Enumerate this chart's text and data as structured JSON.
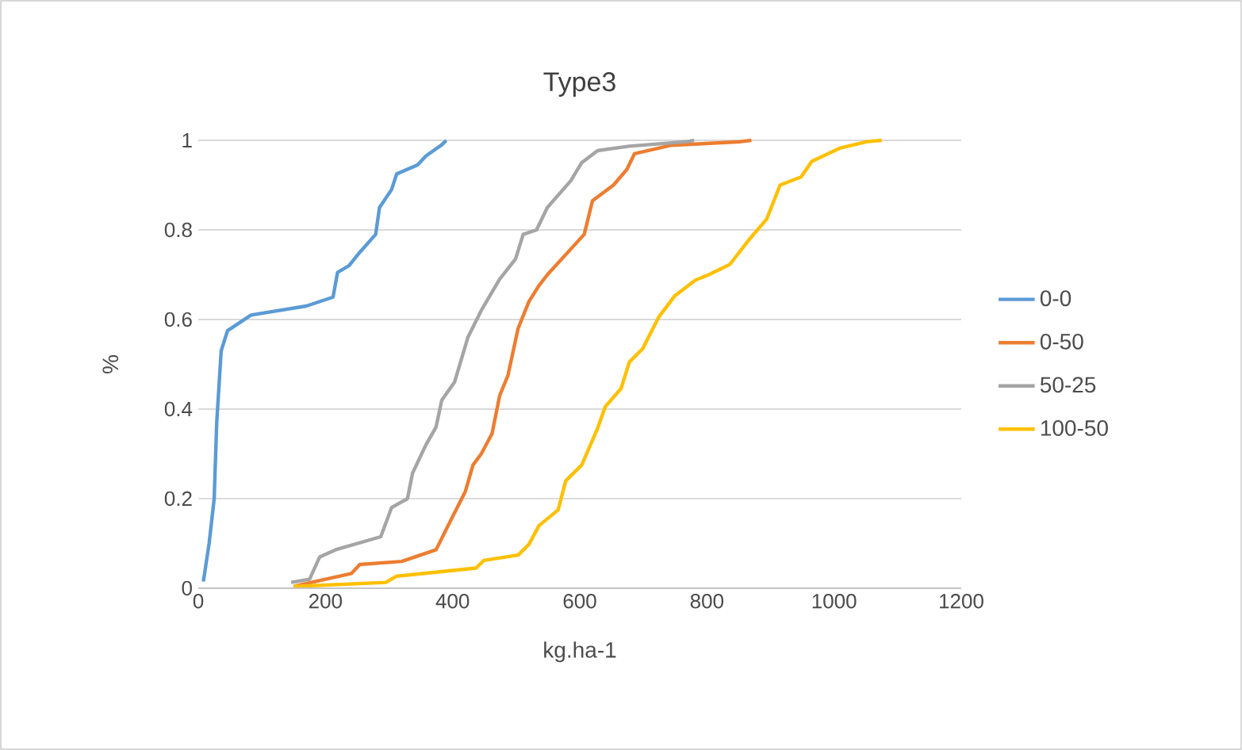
{
  "chart_data": {
    "type": "line",
    "title": "Type3",
    "xlabel": "kg.ha-1",
    "ylabel": "%",
    "xlim": [
      0,
      1200
    ],
    "xticks": [
      0,
      200,
      400,
      600,
      800,
      1000,
      1200
    ],
    "ylim": [
      0,
      1
    ],
    "yticks": [
      0,
      0.2,
      0.4,
      0.6,
      0.8,
      1
    ],
    "grid": "y",
    "legend": "right",
    "series": [
      {
        "name": "0-0",
        "color": "#5b9bd5",
        "x": [
          8,
          17,
          25,
          29,
          36,
          46,
          83,
          170,
          212,
          219,
          237,
          254,
          279,
          285,
          304,
          312,
          345,
          358,
          383,
          390
        ],
        "values": [
          0.015,
          0.1,
          0.2,
          0.37,
          0.53,
          0.575,
          0.61,
          0.63,
          0.65,
          0.705,
          0.72,
          0.75,
          0.79,
          0.85,
          0.89,
          0.925,
          0.945,
          0.965,
          0.99,
          1
        ]
      },
      {
        "name": "0-50",
        "color": "#ed7d31",
        "x": [
          150,
          200,
          241,
          254,
          320,
          374,
          399,
          420,
          432,
          445,
          462,
          474,
          487,
          503,
          520,
          536,
          549,
          607,
          620,
          653,
          674,
          686,
          744,
          853,
          870
        ],
        "values": [
          0.004,
          0.02,
          0.033,
          0.053,
          0.06,
          0.086,
          0.157,
          0.216,
          0.275,
          0.3,
          0.345,
          0.43,
          0.475,
          0.58,
          0.64,
          0.676,
          0.7,
          0.79,
          0.865,
          0.9,
          0.935,
          0.97,
          0.989,
          0.997,
          1
        ]
      },
      {
        "name": "50-25",
        "color": "#a5a5a5",
        "x": [
          146,
          175,
          191,
          216,
          287,
          304,
          329,
          337,
          358,
          374,
          383,
          403,
          424,
          445,
          474,
          499,
          511,
          532,
          549,
          586,
          603,
          628,
          678,
          769,
          780
        ],
        "values": [
          0.013,
          0.02,
          0.07,
          0.086,
          0.115,
          0.18,
          0.2,
          0.257,
          0.32,
          0.36,
          0.42,
          0.46,
          0.56,
          0.62,
          0.69,
          0.735,
          0.79,
          0.8,
          0.85,
          0.91,
          0.95,
          0.977,
          0.987,
          0.997,
          1
        ]
      },
      {
        "name": "100-50",
        "color": "#ffc000",
        "x": [
          150,
          295,
          312,
          437,
          449,
          503,
          520,
          536,
          566,
          578,
          603,
          628,
          640,
          665,
          678,
          699,
          724,
          749,
          782,
          803,
          836,
          865,
          894,
          915,
          948,
          965,
          1010,
          1052,
          1075
        ],
        "values": [
          0.004,
          0.013,
          0.027,
          0.045,
          0.062,
          0.074,
          0.098,
          0.14,
          0.175,
          0.24,
          0.275,
          0.357,
          0.405,
          0.446,
          0.505,
          0.535,
          0.605,
          0.652,
          0.688,
          0.7,
          0.723,
          0.776,
          0.824,
          0.9,
          0.918,
          0.953,
          0.983,
          0.997,
          1
        ]
      }
    ]
  }
}
